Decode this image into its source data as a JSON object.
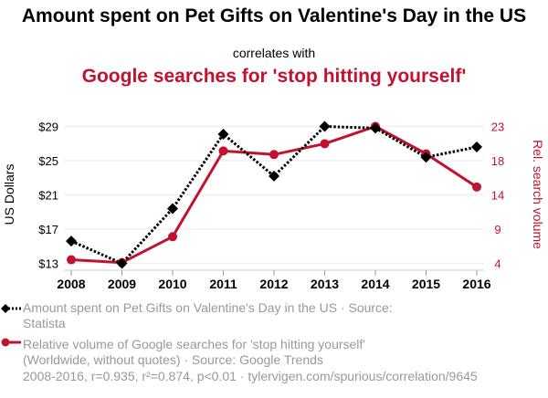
{
  "header": {
    "title": "Amount spent on Pet Gifts on Valentine's Day in the US",
    "correlates_with": "correlates with",
    "title2": "Google searches for 'stop hitting yourself'"
  },
  "legend": {
    "series1": "Amount spent on Pet Gifts on Valentine's Day in the US · Source: Statista",
    "series2": "Relative volume of Google searches for 'stop hitting yourself' (Worldwide, without quotes) · Source: Google Trends"
  },
  "footer": "2008-2016, r=0.935, r²=0.874, p<0.01 · tylervigen.com/spurious/correlation/9645",
  "colors": {
    "series1": "#000000",
    "series2": "#c0132f",
    "grid": "#f0f0f0",
    "axis_text_left": "#000000",
    "axis_text_right": "#c0132f"
  },
  "chart_data": {
    "type": "line",
    "title": "Amount spent on Pet Gifts on Valentine's Day in the US correlates with Google searches for 'stop hitting yourself'",
    "x": [
      "2008",
      "2009",
      "2010",
      "2011",
      "2012",
      "2013",
      "2014",
      "2015",
      "2016"
    ],
    "series": [
      {
        "name": "Amount spent on Pet Gifts on Valentine's Day in the US",
        "axis": "left",
        "style": "dotted",
        "marker": "diamond",
        "values": [
          15.6,
          13.0,
          19.4,
          28.1,
          23.2,
          29.0,
          28.8,
          25.4,
          26.6
        ]
      },
      {
        "name": "Relative volume of Google searches for 'stop hitting yourself'",
        "axis": "right",
        "style": "solid",
        "marker": "circle",
        "values": [
          4.5,
          4.1,
          7.7,
          19.6,
          19.1,
          20.6,
          23.0,
          19.2,
          14.6
        ]
      }
    ],
    "ylabel": "US Dollars",
    "ylabel_right": "Rel. search volume",
    "yticks_left": [
      "$13",
      "$17",
      "$21",
      "$25",
      "$29"
    ],
    "yticks_left_values": [
      13,
      17,
      21,
      25,
      29
    ],
    "yticks_right": [
      "4",
      "9",
      "14",
      "18",
      "23"
    ],
    "yticks_right_values": [
      4,
      8.75,
      13.5,
      18.25,
      23
    ],
    "ylim_left": [
      13,
      29
    ],
    "ylim_right": [
      4,
      23
    ],
    "grid": true,
    "legend_position": "bottom-left"
  }
}
